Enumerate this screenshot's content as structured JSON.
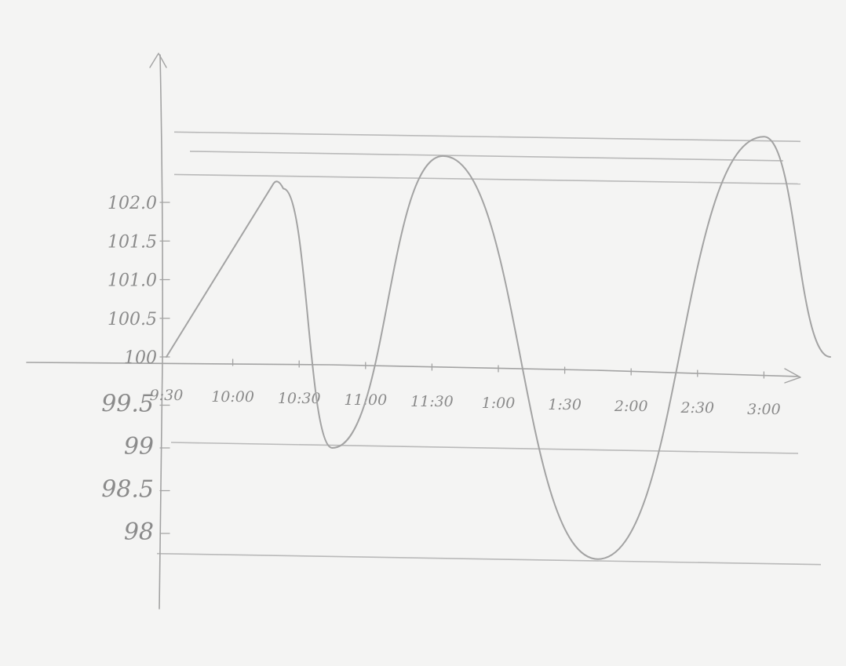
{
  "chart_data": {
    "type": "line",
    "title": "",
    "xlabel": "",
    "ylabel": "",
    "x_tick_labels": [
      "9:30",
      "10:00",
      "10:30",
      "11:00",
      "11:30",
      "1:00",
      "1:30",
      "2:00",
      "2:30",
      "3:00"
    ],
    "y_tick_labels_upper": [
      "100",
      "100.5",
      "101.0",
      "101.5",
      "102.0"
    ],
    "y_tick_labels_lower": [
      "99.5",
      "99",
      "98.5",
      "98"
    ],
    "x_axis_crosses_y_at": 100,
    "ylim": [
      97.6,
      102.9
    ],
    "reference_lines_y": [
      102.85,
      102.6,
      102.3,
      99.0,
      97.7
    ],
    "series": [
      {
        "points": [
          [
            "9:30",
            100.0
          ],
          [
            "10:20",
            102.3
          ],
          [
            "10:45",
            99.0
          ],
          [
            "11:35",
            102.6
          ],
          [
            "1:15",
            97.7
          ],
          [
            "2:30",
            102.85
          ],
          [
            "3:00",
            100.0
          ]
        ]
      }
    ],
    "grid": false,
    "legend": "none"
  }
}
